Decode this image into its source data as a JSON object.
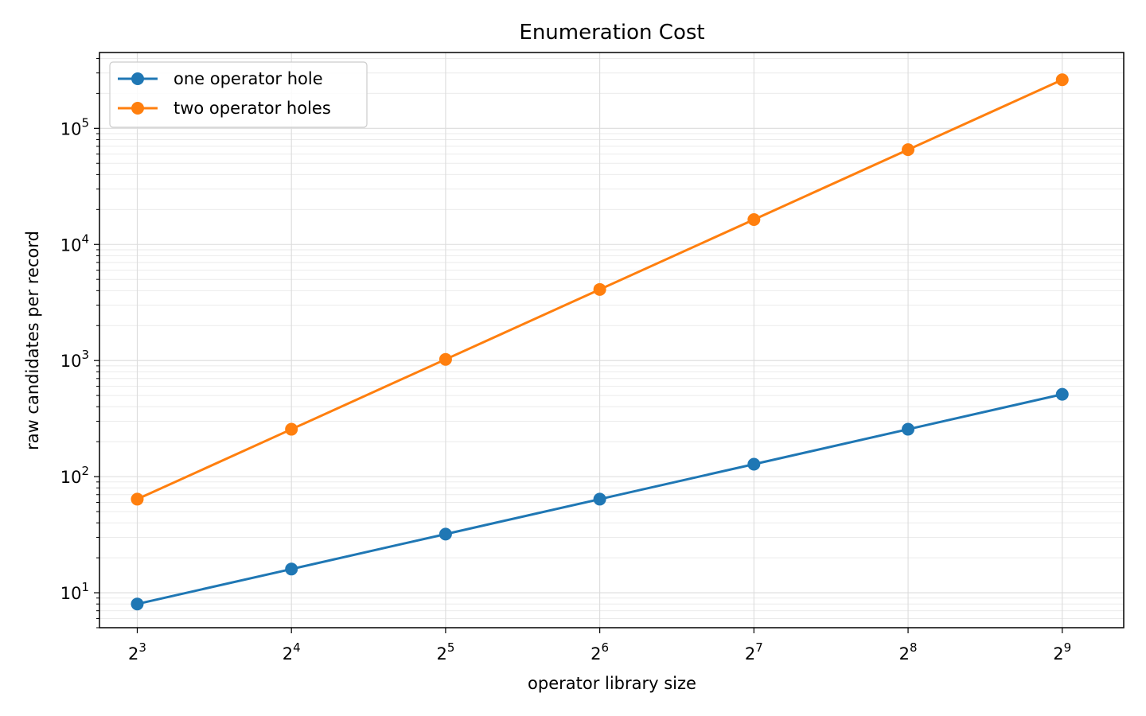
{
  "chart_data": {
    "type": "line",
    "title": "Enumeration Cost",
    "xlabel": "operator library size",
    "ylabel": "raw candidates per record",
    "x_scale": "log2",
    "y_scale": "log10",
    "x": [
      8,
      16,
      32,
      64,
      128,
      256,
      512
    ],
    "x_tick_labels": [
      {
        "base": "2",
        "exp": "3"
      },
      {
        "base": "2",
        "exp": "4"
      },
      {
        "base": "2",
        "exp": "5"
      },
      {
        "base": "2",
        "exp": "6"
      },
      {
        "base": "2",
        "exp": "7"
      },
      {
        "base": "2",
        "exp": "8"
      },
      {
        "base": "2",
        "exp": "9"
      }
    ],
    "y_ticks": [
      10,
      100,
      1000,
      10000,
      100000
    ],
    "y_tick_labels": [
      {
        "base": "10",
        "exp": "1"
      },
      {
        "base": "10",
        "exp": "2"
      },
      {
        "base": "10",
        "exp": "3"
      },
      {
        "base": "10",
        "exp": "4"
      },
      {
        "base": "10",
        "exp": "5"
      }
    ],
    "xlim": [
      6.75,
      675
    ],
    "ylim": [
      5,
      450000
    ],
    "grid": true,
    "legend_position": "top-left",
    "series": [
      {
        "name": "one operator hole",
        "color": "#1f77b4",
        "values": [
          8,
          16,
          32,
          64,
          128,
          256,
          512
        ]
      },
      {
        "name": "two operator holes",
        "color": "#ff7f0e",
        "values": [
          64,
          256,
          1024,
          4096,
          16384,
          65536,
          262144
        ]
      }
    ]
  }
}
